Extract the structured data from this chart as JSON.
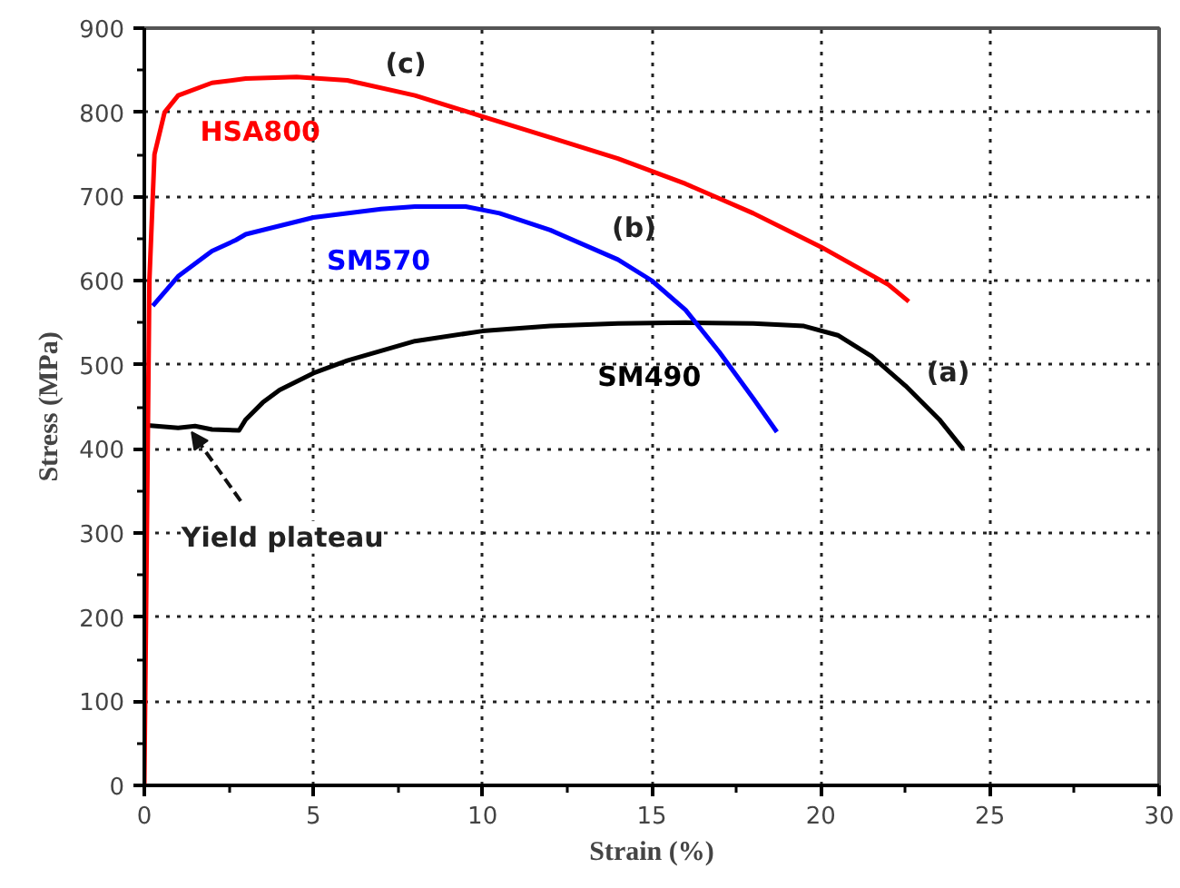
{
  "chart_data": {
    "type": "line",
    "xlabel": "Strain (%)",
    "ylabel": "Stress (MPa)",
    "xlim": [
      0,
      30
    ],
    "xticks": [
      0,
      5,
      10,
      15,
      20,
      25,
      30
    ],
    "ylim": [
      0,
      900
    ],
    "yticks": [
      0,
      100,
      200,
      300,
      400,
      500,
      600,
      700,
      800,
      900
    ],
    "grid": true,
    "marker": "none",
    "line_style": "solid",
    "series": [
      {
        "name": "SM490",
        "color": "#000000",
        "x": [
          0.1,
          1,
          1.5,
          2,
          2.8,
          3,
          3.5,
          4,
          5,
          6,
          8,
          10,
          12,
          14,
          16,
          18,
          19.5,
          20.5,
          21.5,
          22.5,
          23.5,
          24.2
        ],
        "values": [
          428,
          425,
          427,
          423,
          422,
          435,
          455,
          470,
          490,
          505,
          528,
          540,
          546,
          549,
          550,
          549,
          546,
          535,
          510,
          475,
          435,
          400
        ]
      },
      {
        "name": "SM570",
        "color": "#0000ff",
        "x": [
          0.25,
          1,
          2,
          2.7,
          3,
          5,
          7,
          8,
          9.5,
          10.5,
          12,
          14,
          15,
          16,
          17,
          18,
          18.7
        ],
        "values": [
          570,
          605,
          635,
          648,
          655,
          675,
          685,
          688,
          688,
          680,
          660,
          625,
          600,
          565,
          515,
          460,
          420
        ]
      },
      {
        "name": "HSA800",
        "color": "#ff0000",
        "x": [
          0,
          0.15,
          0.3,
          0.6,
          1,
          2,
          3,
          4.5,
          6,
          8,
          10,
          12,
          14,
          16,
          18,
          20,
          22,
          22.6
        ],
        "values": [
          0,
          600,
          750,
          800,
          820,
          835,
          840,
          842,
          838,
          820,
          795,
          770,
          745,
          715,
          680,
          640,
          595,
          575
        ]
      }
    ],
    "annotations": [
      {
        "text": "(a)",
        "x": 22.8,
        "y": 463
      },
      {
        "text": "(b)",
        "x": 13.5,
        "y": 634
      },
      {
        "text": "(c)",
        "x": 6.8,
        "y": 830
      },
      {
        "text": "Yield plateau",
        "x": 1.4,
        "y": 420
      }
    ]
  }
}
